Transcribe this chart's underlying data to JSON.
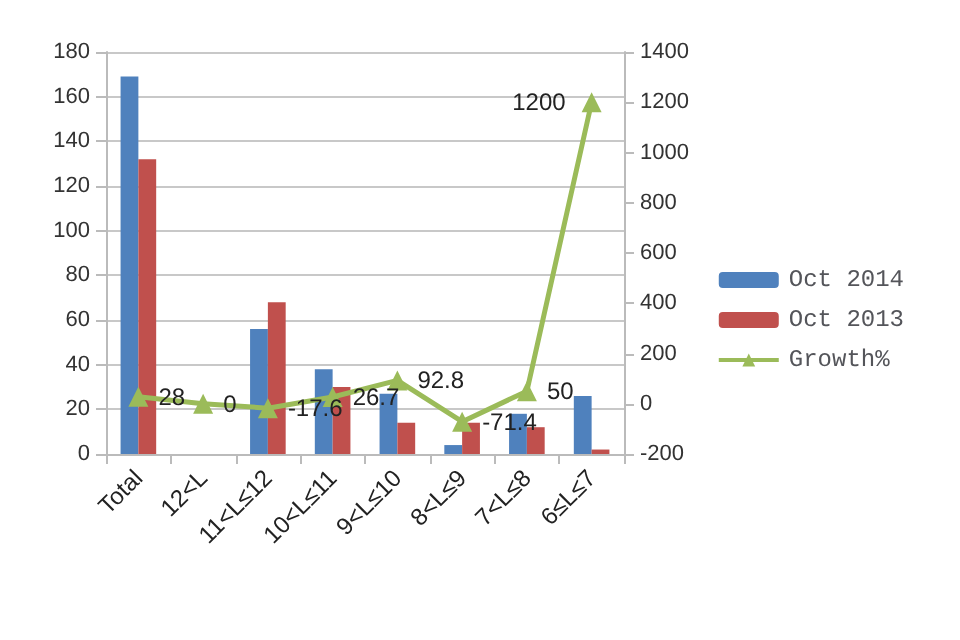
{
  "chart_data": {
    "type": "bar",
    "categories": [
      "Total",
      "12<L",
      "11<L≤12",
      "10<L≤11",
      "9<L≤10",
      "8<L≤9",
      "7<L≤8",
      "6≤L≤7"
    ],
    "series": [
      {
        "name": "Oct 2014",
        "color": "#4f81bd",
        "values": [
          169,
          null,
          56,
          38,
          27,
          4,
          18,
          26
        ]
      },
      {
        "name": "Oct 2013",
        "color": "#c0504d",
        "values": [
          132,
          null,
          68,
          30,
          14,
          14,
          12,
          2
        ]
      },
      {
        "name": "Growth%",
        "type": "line",
        "axis": "y2",
        "color": "#9bbb59",
        "marker": "triangle",
        "values": [
          28,
          0,
          -17.6,
          26.7,
          92.8,
          -71.4,
          50,
          1200
        ],
        "value_labels": [
          "28",
          "0",
          "-17.6",
          "26.7",
          "92.8",
          "-71.4",
          "50",
          "1200"
        ]
      }
    ],
    "ylim": [
      0,
      180
    ],
    "yticks": [
      0,
      20,
      40,
      60,
      80,
      100,
      120,
      140,
      160,
      180
    ],
    "y2lim": [
      -200,
      1400
    ],
    "y2ticks": [
      -200,
      0,
      200,
      400,
      600,
      800,
      1000,
      1200,
      1400
    ],
    "grid": "y",
    "legend": "right"
  }
}
